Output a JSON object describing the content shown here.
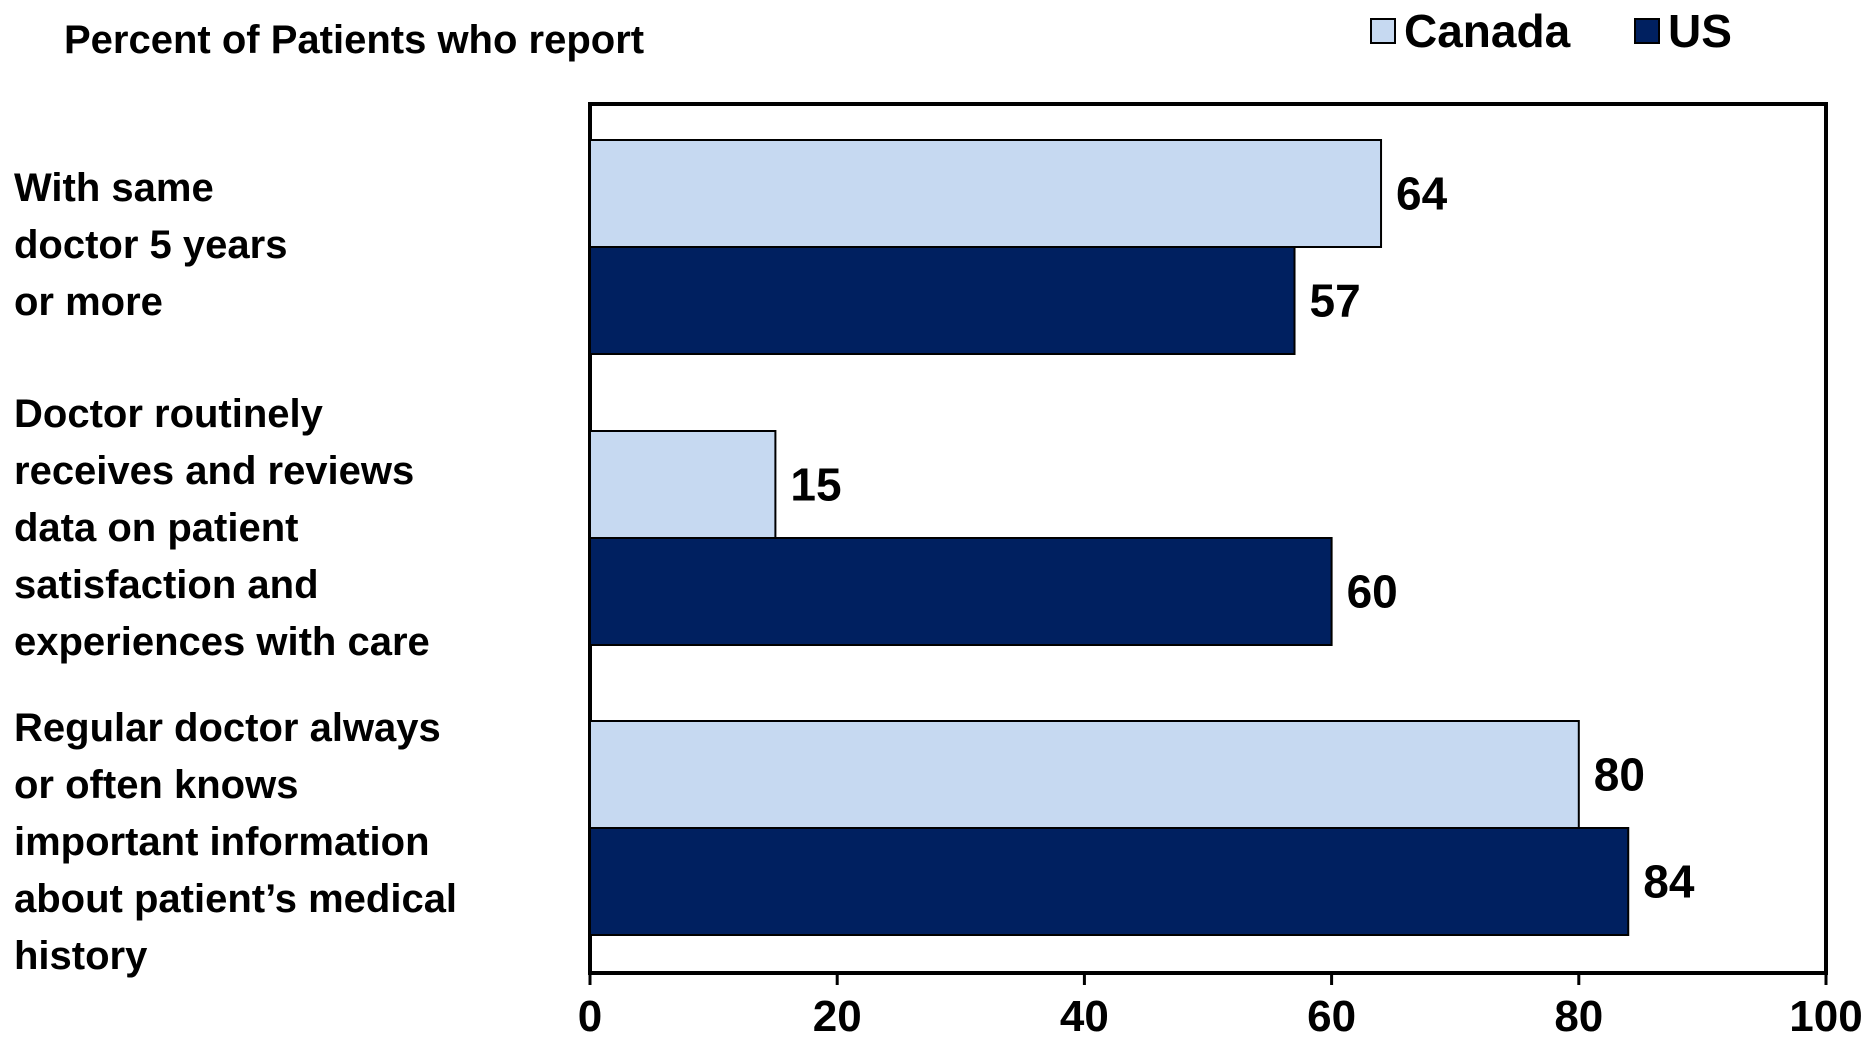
{
  "chart_data": {
    "type": "bar",
    "orientation": "horizontal",
    "title": "Percent of Patients who report",
    "categories": [
      "With same\ndoctor 5 years\nor more",
      "Doctor routinely\nreceives and reviews\ndata on patient\nsatisfaction and\nexperiences with care",
      "Regular doctor always\nor often knows\nimportant information\nabout patient’s medical\nhistory"
    ],
    "series": [
      {
        "name": "Canada",
        "color": "#c6d9f1",
        "values": [
          64,
          15,
          80
        ]
      },
      {
        "name": "US",
        "color": "#002060",
        "values": [
          57,
          60,
          84
        ]
      }
    ],
    "xlim": [
      0,
      100
    ],
    "xticks": [
      "0",
      "20",
      "40",
      "60",
      "80",
      "100"
    ],
    "grid": false,
    "legend": "top-right"
  }
}
